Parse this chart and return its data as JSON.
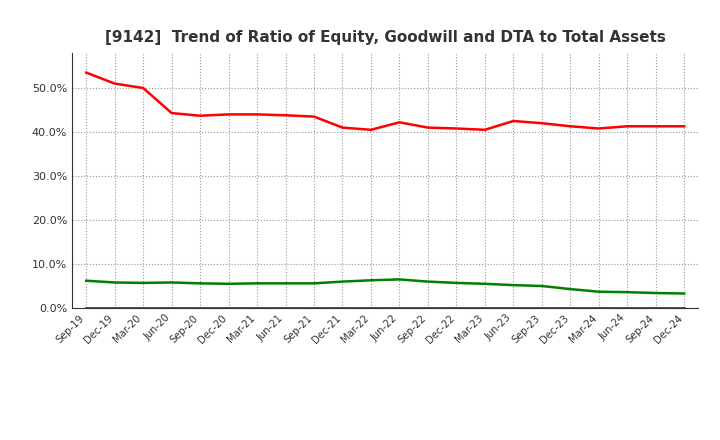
{
  "title": "[9142]  Trend of Ratio of Equity, Goodwill and DTA to Total Assets",
  "x_labels": [
    "Sep-19",
    "Dec-19",
    "Mar-20",
    "Jun-20",
    "Sep-20",
    "Dec-20",
    "Mar-21",
    "Jun-21",
    "Sep-21",
    "Dec-21",
    "Mar-22",
    "Jun-22",
    "Sep-22",
    "Dec-22",
    "Mar-23",
    "Jun-23",
    "Sep-23",
    "Dec-23",
    "Mar-24",
    "Jun-24",
    "Sep-24",
    "Dec-24"
  ],
  "equity": [
    0.535,
    0.51,
    0.5,
    0.443,
    0.437,
    0.44,
    0.44,
    0.438,
    0.435,
    0.41,
    0.405,
    0.422,
    0.41,
    0.408,
    0.405,
    0.425,
    0.42,
    0.413,
    0.408,
    0.413,
    0.413,
    0.413
  ],
  "goodwill": [
    0.0,
    0.0,
    0.0,
    0.0,
    0.0,
    0.0,
    0.0,
    0.0,
    0.0,
    0.0,
    0.0,
    0.0,
    0.0,
    0.0,
    0.0,
    0.0,
    0.0,
    0.0,
    0.0,
    0.0,
    0.0,
    0.0
  ],
  "dta": [
    0.062,
    0.058,
    0.057,
    0.058,
    0.056,
    0.055,
    0.056,
    0.056,
    0.056,
    0.06,
    0.063,
    0.065,
    0.06,
    0.057,
    0.055,
    0.052,
    0.05,
    0.043,
    0.037,
    0.036,
    0.034,
    0.033
  ],
  "equity_color": "#FF0000",
  "goodwill_color": "#0000FF",
  "dta_color": "#008000",
  "ylim": [
    0.0,
    0.58
  ],
  "yticks": [
    0.0,
    0.1,
    0.2,
    0.3,
    0.4,
    0.5
  ],
  "background_color": "#FFFFFF",
  "plot_bg_color": "#FFFFFF",
  "grid_color": "#999999",
  "title_fontsize": 11,
  "title_color": "#333333",
  "tick_color": "#333333",
  "line_width": 1.8,
  "legend_fontsize": 9
}
